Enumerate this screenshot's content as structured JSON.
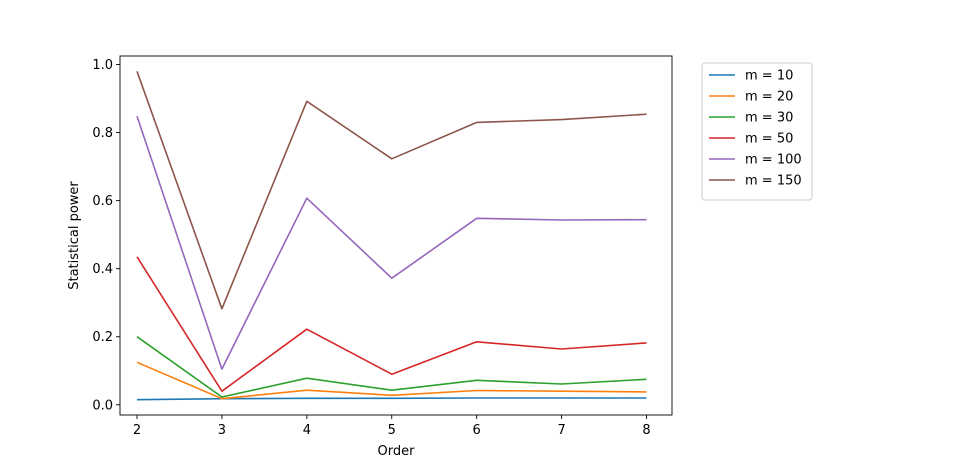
{
  "chart_data": {
    "type": "line",
    "xlabel": "Order",
    "ylabel": "Statistical power",
    "x": [
      2,
      3,
      4,
      5,
      6,
      7,
      8
    ],
    "xlim": [
      1.8,
      8.3
    ],
    "ylim": [
      -0.03,
      1.025
    ],
    "xticks": [
      2,
      3,
      4,
      5,
      6,
      7,
      8
    ],
    "yticks": [
      0.0,
      0.2,
      0.4,
      0.6,
      0.8,
      1.0
    ],
    "ytick_labels": [
      "0.0",
      "0.2",
      "0.4",
      "0.6",
      "0.8",
      "1.0"
    ],
    "grid": false,
    "legend_position": "outside-upper-right",
    "series": [
      {
        "name": "m = 10",
        "color": "#1f77b4",
        "values": [
          0.015,
          0.018,
          0.019,
          0.019,
          0.02,
          0.02,
          0.02
        ]
      },
      {
        "name": "m = 20",
        "color": "#ff7f0e",
        "values": [
          0.125,
          0.018,
          0.043,
          0.028,
          0.042,
          0.04,
          0.038
        ]
      },
      {
        "name": "m = 30",
        "color": "#2ca02c",
        "values": [
          0.2,
          0.023,
          0.078,
          0.043,
          0.072,
          0.061,
          0.075
        ]
      },
      {
        "name": "m = 50",
        "color": "#d62728",
        "values": [
          0.435,
          0.04,
          0.222,
          0.09,
          0.185,
          0.164,
          0.182
        ]
      },
      {
        "name": "m = 100",
        "color": "#9467bd",
        "values": [
          0.848,
          0.105,
          0.607,
          0.372,
          0.548,
          0.543,
          0.544
        ]
      },
      {
        "name": "m = 150",
        "color": "#8c564b",
        "values": [
          0.98,
          0.282,
          0.892,
          0.723,
          0.83,
          0.838,
          0.854
        ]
      }
    ]
  }
}
